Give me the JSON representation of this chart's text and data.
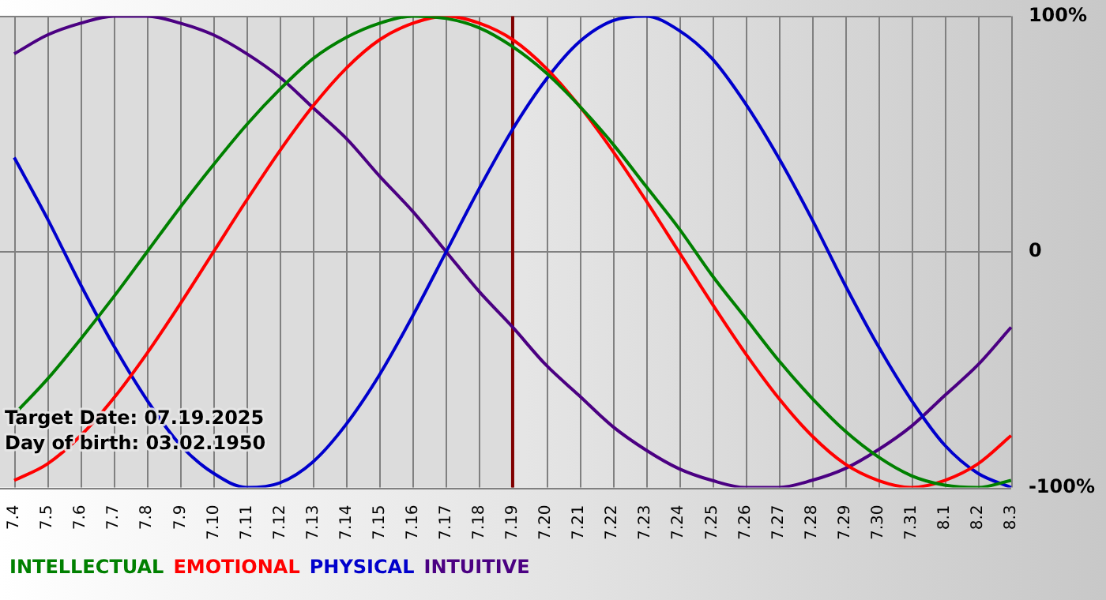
{
  "chart_data": {
    "type": "line",
    "categories": [
      "7.4",
      "7.5",
      "7.6",
      "7.7",
      "7.8",
      "7.9",
      "7.10",
      "7.11",
      "7.12",
      "7.13",
      "7.14",
      "7.15",
      "7.16",
      "7.17",
      "7.18",
      "7.19",
      "7.20",
      "7.21",
      "7.22",
      "7.23",
      "7.24",
      "7.25",
      "7.26",
      "7.27",
      "7.28",
      "7.29",
      "7.30",
      "7.31",
      "8.1",
      "8.2",
      "8.3"
    ],
    "series": [
      {
        "name": "INTELLECTUAL",
        "color": "#008000",
        "values": [
          -69,
          -54,
          -37,
          -19,
          0,
          19,
          37,
          54,
          69,
          82,
          91,
          97,
          100,
          99,
          95,
          87,
          76,
          62,
          46,
          28,
          10,
          -10,
          -28,
          -46,
          -62,
          -76,
          -87,
          -95,
          -99,
          -100,
          -97
        ]
      },
      {
        "name": "EMOTIONAL",
        "color": "#ff0000",
        "values": [
          -97,
          -90,
          -78,
          -62,
          -43,
          -22,
          0,
          22,
          43,
          62,
          78,
          90,
          97,
          100,
          97,
          90,
          78,
          62,
          43,
          22,
          0,
          -22,
          -43,
          -62,
          -78,
          -90,
          -97,
          -100,
          -97,
          -90,
          -78
        ]
      },
      {
        "name": "PHYSICAL",
        "color": "#0000cc",
        "values": [
          40,
          14,
          -14,
          -40,
          -63,
          -82,
          -94,
          -100,
          -98,
          -89,
          -73,
          -52,
          -27,
          0,
          27,
          52,
          73,
          89,
          98,
          100,
          94,
          82,
          63,
          40,
          14,
          -14,
          -40,
          -63,
          -82,
          -94,
          -100
        ]
      },
      {
        "name": "INTUITIVE",
        "color": "#4b0082",
        "values": [
          84,
          92,
          97,
          100,
          100,
          97,
          92,
          84,
          74,
          61,
          48,
          32,
          17,
          0,
          -17,
          -32,
          -48,
          -61,
          -74,
          -84,
          -92,
          -97,
          -100,
          -100,
          -97,
          -92,
          -84,
          -74,
          -61,
          -48,
          -32
        ]
      }
    ],
    "ylim": [
      -100,
      100
    ],
    "yticks": [
      {
        "value": -100,
        "label": "-100%"
      },
      0,
      {
        "value": 100,
        "label": "100%"
      }
    ],
    "grid": true,
    "legend": "bottom",
    "marker": "none",
    "ref_lines": [
      {
        "axis": "x",
        "value": "7.19",
        "color": "#800000"
      }
    ],
    "bands": [
      {
        "axis": "x",
        "from": "7.4",
        "to": "7.19",
        "color": "#dcdcdc"
      }
    ],
    "annotations": [
      "Target Date: 07.19.2025",
      "Day of birth: 03.02.1950"
    ]
  }
}
